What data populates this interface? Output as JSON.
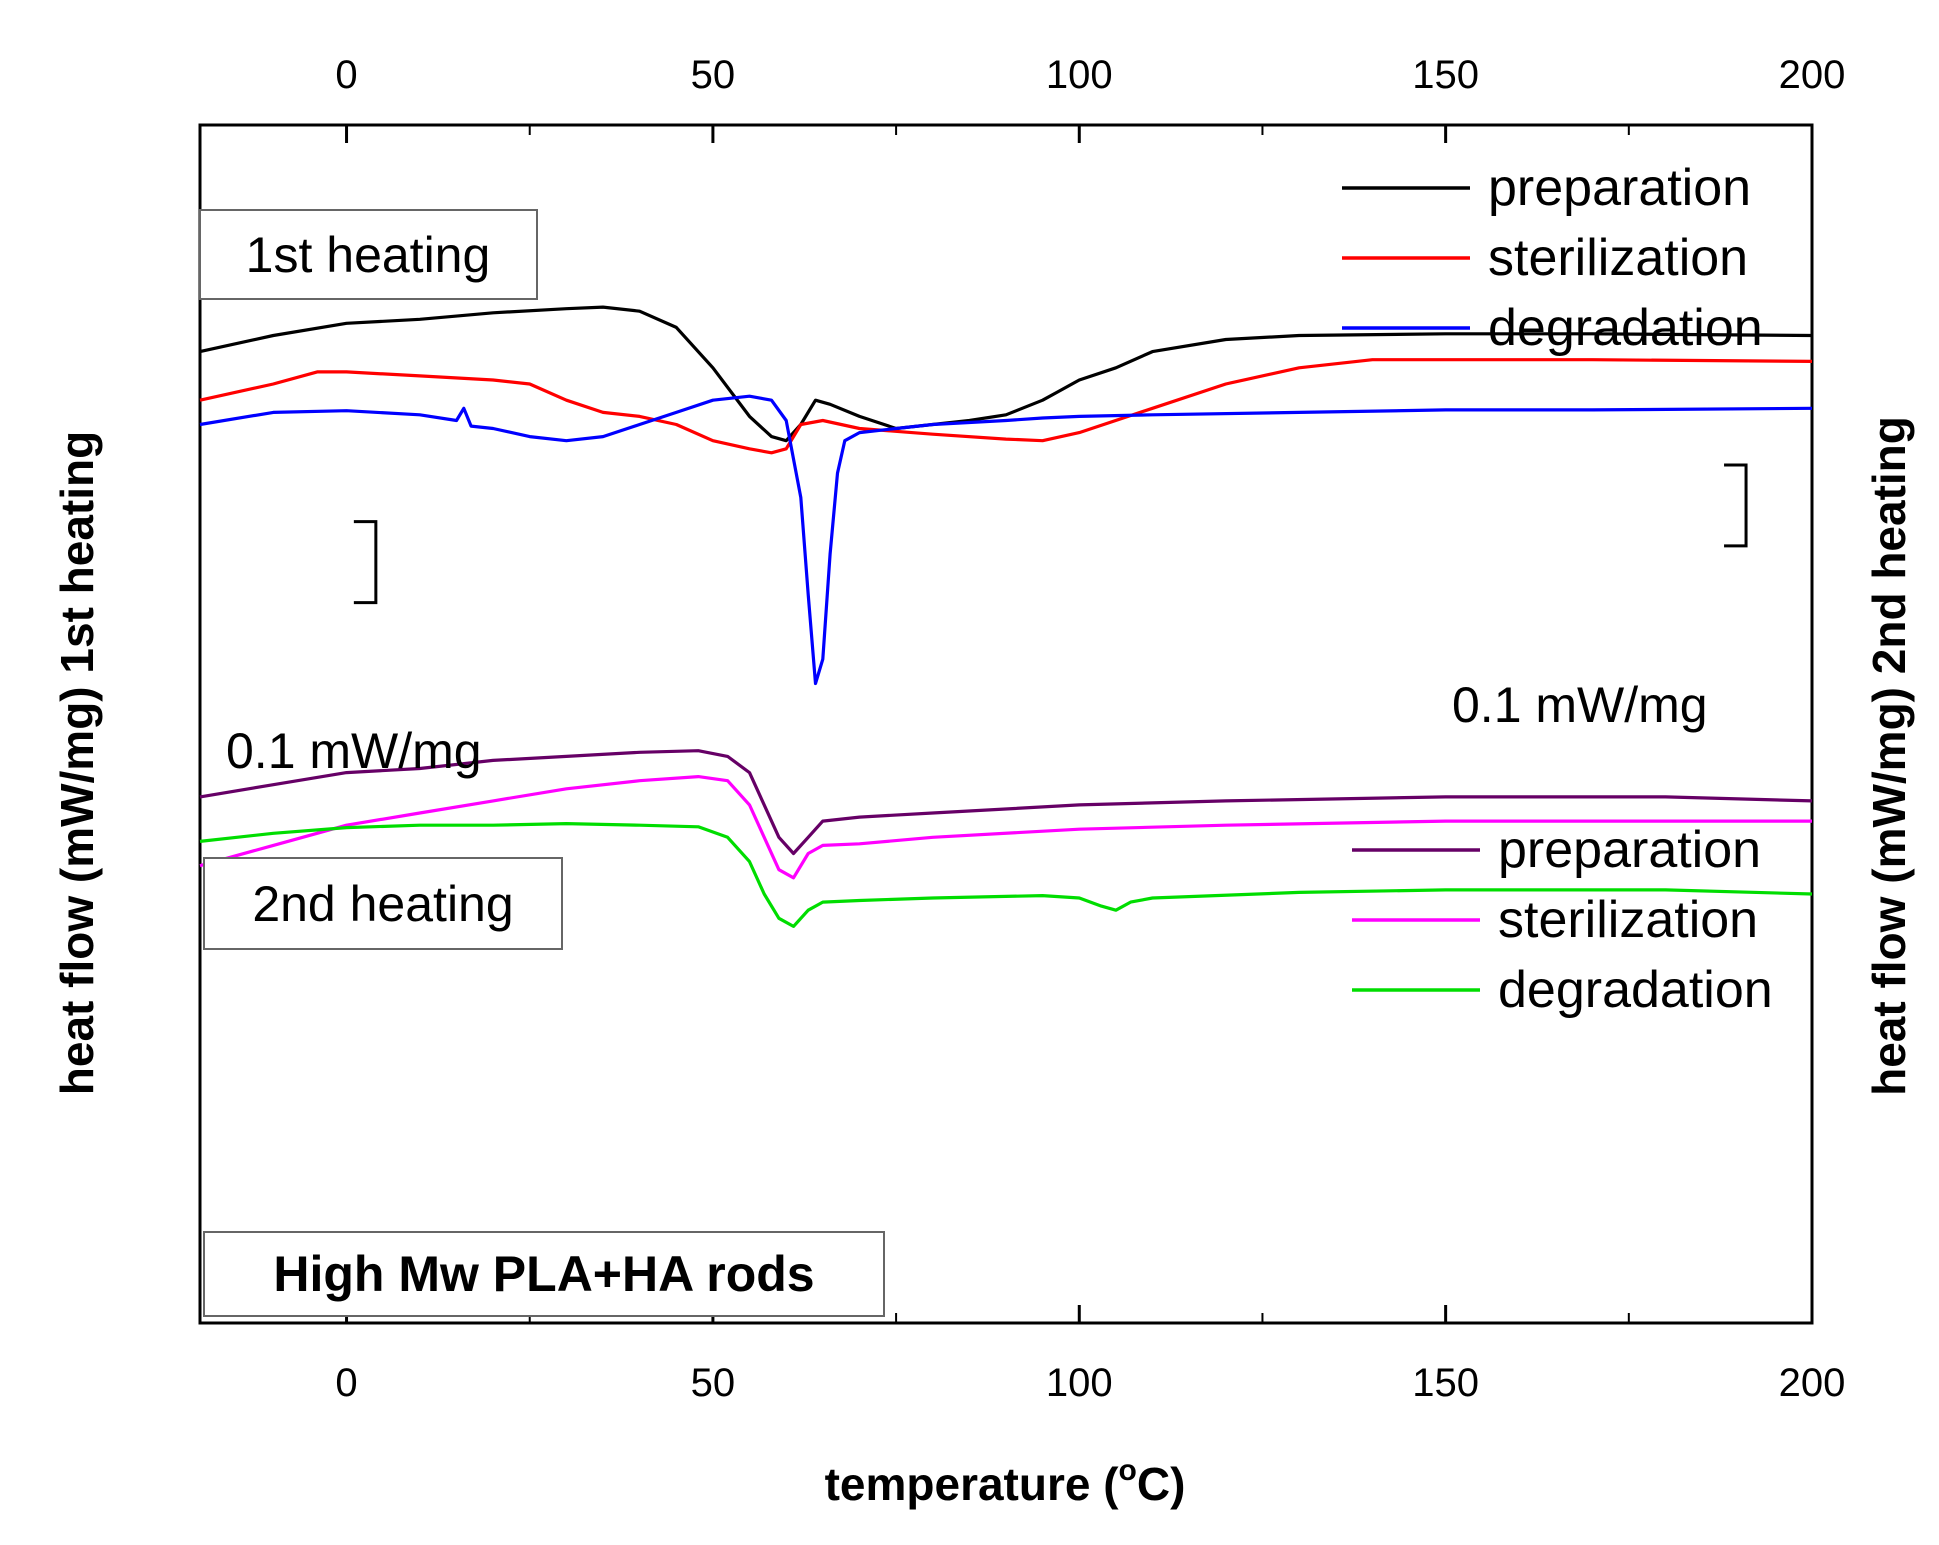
{
  "chart_data": {
    "type": "line",
    "xlabel": "temperature (°C)",
    "xlabel_parts": {
      "main": "temperature (",
      "sup": "o",
      "end": "C)"
    },
    "ylabel_left": "heat flow (mW/mg) 1st heating",
    "ylabel_right": "heat flow (mW/mg) 2nd heating",
    "xlim": [
      -20,
      200
    ],
    "xticks": [
      "0",
      "50",
      "100",
      "150",
      "200"
    ],
    "xtick_values": [
      0,
      50,
      100,
      150,
      200
    ],
    "ylim": [
      -1.2,
      0.28
    ],
    "y_units": "mW/mg (relative, offset curves)",
    "scale_bar_left": {
      "label": "0.1 mW/mg",
      "value": 0.1,
      "x_data": 4,
      "y_top": -0.21
    },
    "scale_bar_right": {
      "label": "0.1 mW/mg",
      "value": 0.1,
      "x_data": 191,
      "y_top": -0.14
    },
    "panel_labels": {
      "first": "1st heating",
      "second": "2nd heating",
      "sample": "High Mw PLA+HA rods"
    },
    "legend_first_heating": [
      {
        "name": "preparation",
        "color": "#000000"
      },
      {
        "name": "sterilization",
        "color": "#ff0000"
      },
      {
        "name": "degradation",
        "color": "#0000ff"
      }
    ],
    "legend_second_heating": [
      {
        "name": "preparation",
        "color": "#660066"
      },
      {
        "name": "sterilization",
        "color": "#ff00ff"
      },
      {
        "name": "degradation",
        "color": "#00dd00"
      }
    ],
    "series": [
      {
        "name": "preparation",
        "group": "1st heating",
        "color": "#000000",
        "points": [
          [
            -20,
            0
          ],
          [
            -10,
            0.02
          ],
          [
            0,
            0.035
          ],
          [
            10,
            0.04
          ],
          [
            20,
            0.048
          ],
          [
            30,
            0.053
          ],
          [
            35,
            0.055
          ],
          [
            40,
            0.05
          ],
          [
            45,
            0.03
          ],
          [
            50,
            -0.02
          ],
          [
            55,
            -0.08
          ],
          [
            58,
            -0.105
          ],
          [
            60,
            -0.11
          ],
          [
            62,
            -0.09
          ],
          [
            64,
            -0.06
          ],
          [
            66,
            -0.065
          ],
          [
            70,
            -0.08
          ],
          [
            75,
            -0.095
          ],
          [
            80,
            -0.09
          ],
          [
            85,
            -0.085
          ],
          [
            90,
            -0.078
          ],
          [
            95,
            -0.06
          ],
          [
            97,
            -0.05
          ],
          [
            100,
            -0.035
          ],
          [
            105,
            -0.02
          ],
          [
            110,
            0.0
          ],
          [
            120,
            0.015
          ],
          [
            130,
            0.02
          ],
          [
            150,
            0.022
          ],
          [
            170,
            0.022
          ],
          [
            200,
            0.02
          ]
        ]
      },
      {
        "name": "sterilization",
        "group": "1st heating",
        "color": "#ff0000",
        "points": [
          [
            -20,
            -0.06
          ],
          [
            -10,
            -0.04
          ],
          [
            -4,
            -0.025
          ],
          [
            0,
            -0.025
          ],
          [
            10,
            -0.03
          ],
          [
            20,
            -0.035
          ],
          [
            25,
            -0.04
          ],
          [
            30,
            -0.06
          ],
          [
            35,
            -0.075
          ],
          [
            40,
            -0.08
          ],
          [
            45,
            -0.09
          ],
          [
            50,
            -0.11
          ],
          [
            55,
            -0.12
          ],
          [
            58,
            -0.125
          ],
          [
            60,
            -0.12
          ],
          [
            62,
            -0.09
          ],
          [
            65,
            -0.085
          ],
          [
            70,
            -0.095
          ],
          [
            80,
            -0.102
          ],
          [
            90,
            -0.108
          ],
          [
            95,
            -0.11
          ],
          [
            100,
            -0.1
          ],
          [
            110,
            -0.07
          ],
          [
            120,
            -0.04
          ],
          [
            130,
            -0.02
          ],
          [
            140,
            -0.01
          ],
          [
            150,
            -0.01
          ],
          [
            170,
            -0.01
          ],
          [
            200,
            -0.012
          ]
        ]
      },
      {
        "name": "degradation",
        "group": "1st heating",
        "color": "#0000ff",
        "points": [
          [
            -20,
            -0.09
          ],
          [
            -10,
            -0.075
          ],
          [
            0,
            -0.073
          ],
          [
            10,
            -0.078
          ],
          [
            15,
            -0.085
          ],
          [
            16,
            -0.07
          ],
          [
            17,
            -0.092
          ],
          [
            20,
            -0.095
          ],
          [
            25,
            -0.105
          ],
          [
            30,
            -0.11
          ],
          [
            35,
            -0.105
          ],
          [
            40,
            -0.09
          ],
          [
            45,
            -0.075
          ],
          [
            50,
            -0.06
          ],
          [
            55,
            -0.055
          ],
          [
            58,
            -0.06
          ],
          [
            60,
            -0.085
          ],
          [
            62,
            -0.18
          ],
          [
            63,
            -0.3
          ],
          [
            64,
            -0.41
          ],
          [
            65,
            -0.38
          ],
          [
            66,
            -0.25
          ],
          [
            67,
            -0.15
          ],
          [
            68,
            -0.11
          ],
          [
            70,
            -0.1
          ],
          [
            75,
            -0.095
          ],
          [
            80,
            -0.09
          ],
          [
            90,
            -0.085
          ],
          [
            95,
            -0.082
          ],
          [
            100,
            -0.08
          ],
          [
            110,
            -0.078
          ],
          [
            130,
            -0.075
          ],
          [
            150,
            -0.072
          ],
          [
            170,
            -0.072
          ],
          [
            200,
            -0.07
          ]
        ]
      },
      {
        "name": "preparation",
        "group": "2nd heating",
        "color": "#660066",
        "points": [
          [
            -20,
            -0.55
          ],
          [
            -10,
            -0.535
          ],
          [
            0,
            -0.52
          ],
          [
            10,
            -0.515
          ],
          [
            20,
            -0.505
          ],
          [
            30,
            -0.5
          ],
          [
            40,
            -0.495
          ],
          [
            48,
            -0.493
          ],
          [
            52,
            -0.5
          ],
          [
            55,
            -0.52
          ],
          [
            57,
            -0.56
          ],
          [
            59,
            -0.6
          ],
          [
            61,
            -0.62
          ],
          [
            63,
            -0.6
          ],
          [
            65,
            -0.58
          ],
          [
            70,
            -0.575
          ],
          [
            80,
            -0.57
          ],
          [
            100,
            -0.56
          ],
          [
            120,
            -0.555
          ],
          [
            150,
            -0.55
          ],
          [
            180,
            -0.55
          ],
          [
            200,
            -0.555
          ]
        ]
      },
      {
        "name": "sterilization",
        "group": "2nd heating",
        "color": "#ff00ff",
        "points": [
          [
            -20,
            -0.635
          ],
          [
            -10,
            -0.61
          ],
          [
            0,
            -0.585
          ],
          [
            10,
            -0.57
          ],
          [
            20,
            -0.555
          ],
          [
            30,
            -0.54
          ],
          [
            40,
            -0.53
          ],
          [
            48,
            -0.525
          ],
          [
            52,
            -0.53
          ],
          [
            55,
            -0.56
          ],
          [
            57,
            -0.6
          ],
          [
            59,
            -0.64
          ],
          [
            61,
            -0.65
          ],
          [
            63,
            -0.62
          ],
          [
            65,
            -0.61
          ],
          [
            70,
            -0.608
          ],
          [
            80,
            -0.6
          ],
          [
            100,
            -0.59
          ],
          [
            120,
            -0.585
          ],
          [
            150,
            -0.58
          ],
          [
            180,
            -0.58
          ],
          [
            200,
            -0.58
          ]
        ]
      },
      {
        "name": "degradation",
        "group": "2nd heating",
        "color": "#00dd00",
        "points": [
          [
            -20,
            -0.605
          ],
          [
            -10,
            -0.595
          ],
          [
            0,
            -0.588
          ],
          [
            10,
            -0.585
          ],
          [
            20,
            -0.585
          ],
          [
            30,
            -0.583
          ],
          [
            40,
            -0.585
          ],
          [
            48,
            -0.587
          ],
          [
            52,
            -0.6
          ],
          [
            55,
            -0.63
          ],
          [
            57,
            -0.67
          ],
          [
            59,
            -0.7
          ],
          [
            61,
            -0.71
          ],
          [
            63,
            -0.69
          ],
          [
            65,
            -0.68
          ],
          [
            70,
            -0.678
          ],
          [
            80,
            -0.675
          ],
          [
            95,
            -0.672
          ],
          [
            100,
            -0.675
          ],
          [
            103,
            -0.685
          ],
          [
            105,
            -0.69
          ],
          [
            107,
            -0.68
          ],
          [
            110,
            -0.675
          ],
          [
            130,
            -0.668
          ],
          [
            150,
            -0.665
          ],
          [
            180,
            -0.665
          ],
          [
            200,
            -0.67
          ]
        ]
      }
    ]
  }
}
